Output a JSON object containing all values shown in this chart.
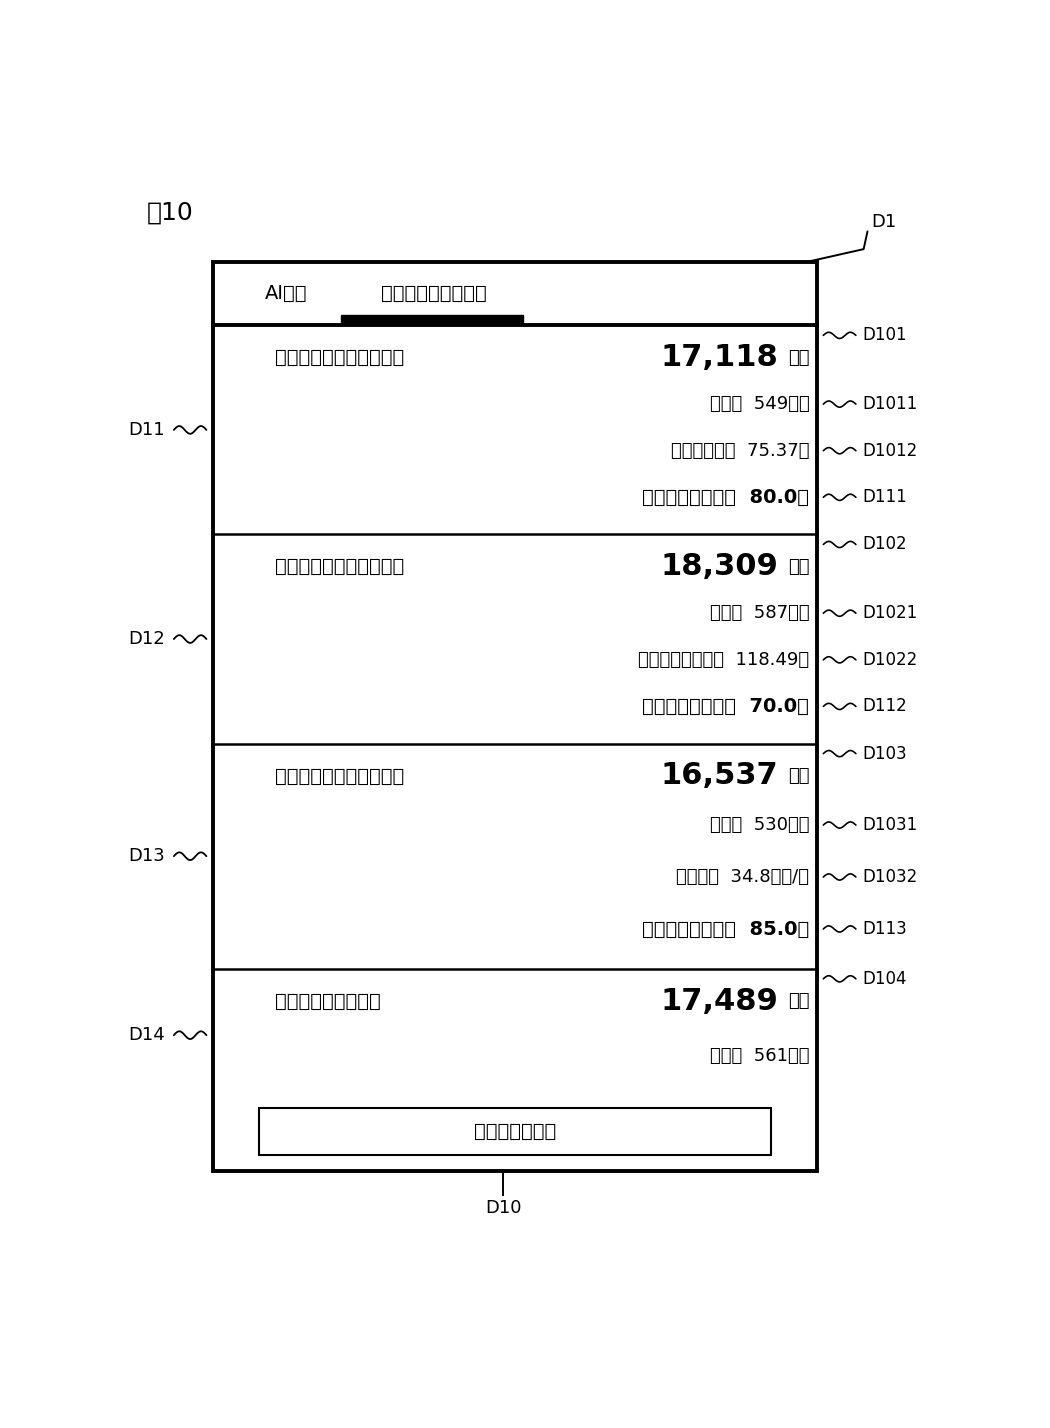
{
  "fig_label": "図10",
  "D1_label": "D1",
  "D10_label": "D10",
  "tab_ai": "AI査定",
  "tab_reno": "リノベーション査定",
  "sections": [
    {
      "id": "D11",
      "sec_label": "D101",
      "title": "新築価格割合からの算出",
      "price": "17,118",
      "unit": "万円",
      "details": [
        {
          "label": "D1011",
          "text": "坪単価  549万円",
          "bold": false
        },
        {
          "label": "D1012",
          "text": "新築価格割合  75.37％",
          "bold": false
        },
        {
          "label": "D111",
          "text": "事例からの信頼度  80.0％",
          "bold": true
        }
      ]
    },
    {
      "id": "D12",
      "sec_label": "D102",
      "title": "リノベ増分割合から算出",
      "price": "18,309",
      "unit": "万円",
      "details": [
        {
          "label": "D1021",
          "text": "坪単価  587万円",
          "bold": false
        },
        {
          "label": "D1022",
          "text": "一般中古物件比較  118.49％",
          "bold": false
        },
        {
          "label": "D112",
          "text": "事例からの信頼度  70.0％",
          "bold": true
        }
      ]
    },
    {
      "id": "D13",
      "sec_label": "D103",
      "title": "リノベ増分単価から算出",
      "price": "16,537",
      "unit": "万円",
      "details": [
        {
          "label": "D1031",
          "text": "坪単価  530万円",
          "bold": false
        },
        {
          "label": "D1032",
          "text": "増分単価  34.8万円/坪",
          "bold": false
        },
        {
          "label": "D113",
          "text": "事例からの信頼度  85.0％",
          "bold": true
        }
      ]
    },
    {
      "id": "D14",
      "sec_label": "D104",
      "title": "総合リノベ推定価格",
      "price": "17,489",
      "unit": "万円",
      "details": [
        {
          "label": "",
          "text": "坪単価  561万円",
          "bold": false
        }
      ]
    }
  ],
  "bottom_label": "特許マンション",
  "bg_color": "#ffffff",
  "border_color": "#000000",
  "text_color": "#000000"
}
